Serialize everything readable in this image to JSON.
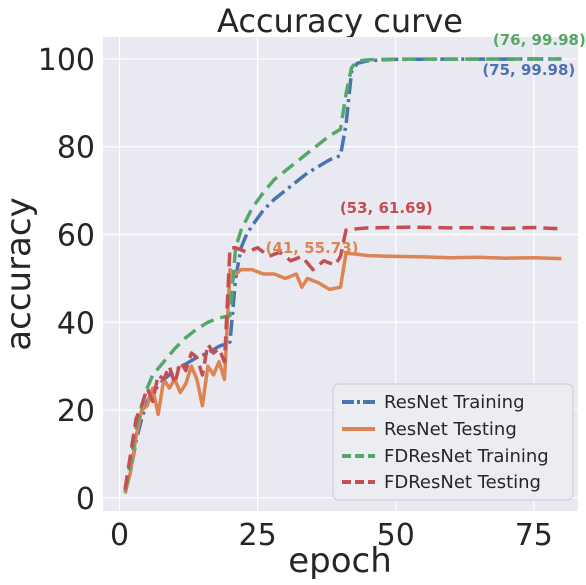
{
  "chart_data": {
    "type": "line",
    "title": "Accuracy curve",
    "xlabel": "epoch",
    "ylabel": "accuracy",
    "xlim": [
      -3,
      83
    ],
    "ylim": [
      -3,
      105
    ],
    "xticks": [
      0,
      25,
      50,
      75
    ],
    "yticks": [
      0,
      20,
      40,
      60,
      80,
      100
    ],
    "grid": true,
    "legend_position": "lower-right",
    "background": "#e9e9f1",
    "series": [
      {
        "name": "ResNet Training",
        "color": "#4c72b0",
        "style": "dashdot",
        "x": [
          1,
          2,
          3,
          4,
          5,
          6,
          8,
          10,
          12,
          14,
          16,
          18,
          20,
          21,
          22,
          23,
          24,
          26,
          28,
          30,
          32,
          34,
          36,
          38,
          40,
          41,
          42,
          43,
          45,
          48,
          50,
          55,
          60,
          65,
          70,
          75,
          80
        ],
        "y": [
          1.5,
          6,
          13,
          18,
          22,
          24,
          27,
          29,
          30.5,
          32,
          33,
          34.5,
          35.5,
          50,
          57,
          60,
          62,
          65.5,
          68,
          70,
          72,
          74,
          75.5,
          77,
          78,
          85,
          97,
          99,
          99.6,
          99.8,
          99.9,
          99.95,
          99.96,
          99.97,
          99.97,
          99.98,
          99.98
        ]
      },
      {
        "name": "ResNet Testing",
        "color": "#dd8452",
        "style": "solid",
        "x": [
          1,
          2,
          3,
          4,
          5,
          6,
          7,
          8,
          9,
          10,
          11,
          12,
          13,
          14,
          15,
          16,
          17,
          18,
          19,
          20,
          21,
          22,
          24,
          26,
          28,
          30,
          32,
          33,
          34,
          36,
          38,
          40,
          41,
          43,
          45,
          50,
          55,
          60,
          65,
          70,
          75,
          80
        ],
        "y": [
          1,
          6,
          14,
          20,
          21,
          25,
          19,
          27,
          25,
          27,
          24,
          26,
          30,
          27,
          21,
          30,
          28,
          31,
          27,
          52,
          51,
          52,
          52,
          51,
          51,
          50,
          51,
          48,
          50,
          49,
          47.5,
          48,
          55.73,
          55.5,
          55.2,
          55.0,
          54.9,
          54.7,
          54.8,
          54.6,
          54.7,
          54.5
        ]
      },
      {
        "name": "FDResNet Training",
        "color": "#55a868",
        "style": "dashed",
        "x": [
          1,
          2,
          3,
          4,
          5,
          6,
          8,
          10,
          12,
          14,
          16,
          18,
          20,
          21,
          22,
          24,
          26,
          28,
          30,
          32,
          34,
          36,
          38,
          40,
          41,
          42,
          43,
          45,
          48,
          50,
          55,
          60,
          65,
          70,
          76,
          80
        ],
        "y": [
          1.5,
          8,
          16,
          21,
          25,
          28,
          31,
          34,
          36.5,
          38.5,
          40,
          41,
          41.5,
          57,
          61,
          66,
          69.5,
          72.5,
          74.5,
          76.5,
          78.5,
          80.5,
          82.5,
          84,
          92,
          98,
          99.5,
          99.8,
          99.9,
          99.95,
          99.96,
          99.97,
          99.97,
          99.98,
          99.98,
          99.98
        ]
      },
      {
        "name": "FDResNet Testing",
        "color": "#c44e52",
        "style": "dashed",
        "x": [
          1,
          2,
          3,
          4,
          5,
          6,
          7,
          8,
          9,
          10,
          11,
          12,
          13,
          14,
          15,
          16,
          17,
          18,
          19,
          20,
          21,
          23,
          25,
          27,
          29,
          31,
          33,
          35,
          37,
          39,
          40,
          41,
          43,
          45,
          53,
          60,
          65,
          70,
          75,
          80
        ],
        "y": [
          2,
          10,
          18,
          21,
          25,
          22,
          28,
          27,
          30,
          26,
          31,
          29,
          33,
          32,
          28,
          35,
          33,
          34,
          31,
          57,
          57,
          56,
          57,
          55,
          56,
          54,
          55,
          52,
          54,
          53,
          55,
          61,
          61.3,
          61.5,
          61.69,
          61.5,
          61.6,
          61.4,
          61.6,
          61.3
        ]
      }
    ],
    "annotations": [
      {
        "text": "(76, 99.98)",
        "x": 76,
        "y": 99.98,
        "color": "#55a868"
      },
      {
        "text": "(75, 99.98)",
        "x": 75,
        "y": 99.98,
        "color": "#4c72b0"
      },
      {
        "text": "(53, 61.69)",
        "x": 53,
        "y": 61.69,
        "color": "#c44e52"
      },
      {
        "text": "(41, 55.73)",
        "x": 41,
        "y": 55.73,
        "color": "#dd8452"
      }
    ]
  }
}
